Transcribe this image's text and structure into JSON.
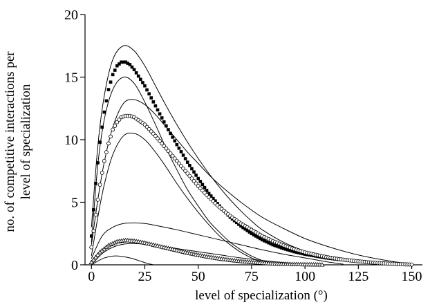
{
  "chart_data": {
    "type": "scatter",
    "title": "",
    "xlabel": "level of specialization (°)",
    "ylabel_line1": "no. of competitive interactions per",
    "ylabel_line2": "level of specialization",
    "xlim": [
      -3,
      155
    ],
    "ylim": [
      0,
      20
    ],
    "xticks": [
      "0",
      "25",
      "50",
      "75",
      "100",
      "125",
      "150"
    ],
    "yticks": [
      "0",
      "5",
      "10",
      "15",
      "20"
    ],
    "grid": false,
    "legend": "none",
    "series": [
      {
        "marker": "filled-square",
        "x": [
          0,
          2,
          4,
          6,
          8,
          10,
          12,
          14,
          16,
          18,
          20,
          25,
          30,
          35,
          40,
          45,
          50,
          55,
          60,
          65,
          70,
          75,
          80,
          85,
          90,
          95,
          100,
          105,
          110,
          115,
          118
        ],
        "y": [
          2.3,
          6.5,
          9.8,
          12.2,
          14.0,
          15.2,
          15.9,
          16.2,
          16.2,
          16.0,
          15.6,
          14.3,
          12.7,
          11.1,
          9.6,
          8.2,
          6.9,
          5.7,
          4.7,
          3.8,
          3.1,
          2.5,
          2.0,
          1.6,
          1.3,
          1.05,
          0.85,
          0.7,
          0.55,
          0.45,
          0.4
        ]
      },
      {
        "marker": "open-circle",
        "x": [
          0,
          2,
          4,
          6,
          8,
          10,
          12,
          14,
          16,
          18,
          20,
          25,
          30,
          35,
          40,
          45,
          50,
          55,
          60,
          65,
          70,
          75,
          80,
          85,
          90,
          95,
          100,
          105,
          110,
          115,
          120,
          125,
          130,
          135,
          140,
          145,
          150
        ],
        "y": [
          1.4,
          4.0,
          6.4,
          8.3,
          9.7,
          10.8,
          11.4,
          11.8,
          11.9,
          11.9,
          11.8,
          11.2,
          10.3,
          9.3,
          8.3,
          7.3,
          6.3,
          5.4,
          4.6,
          3.9,
          3.3,
          2.8,
          2.3,
          1.9,
          1.55,
          1.25,
          1.0,
          0.8,
          0.62,
          0.48,
          0.37,
          0.28,
          0.2,
          0.14,
          0.09,
          0.05,
          0.02
        ]
      },
      {
        "marker": "open-triangle",
        "x": [
          0,
          4,
          8,
          12,
          16,
          20,
          25,
          30,
          35,
          40,
          45,
          50,
          55,
          60,
          65,
          70,
          75,
          80,
          85,
          90,
          95,
          100,
          105,
          108
        ],
        "y": [
          0.2,
          1.0,
          1.55,
          1.85,
          1.95,
          1.9,
          1.75,
          1.55,
          1.35,
          1.15,
          0.95,
          0.78,
          0.62,
          0.48,
          0.37,
          0.28,
          0.2,
          0.14,
          0.09,
          0.06,
          0.04,
          0.02,
          0.01,
          0.0
        ]
      }
    ],
    "envelopes": [
      {
        "x": [
          0,
          3,
          6,
          10,
          15,
          20,
          25,
          30,
          35,
          40,
          45,
          50,
          55,
          60,
          65,
          70,
          75,
          80,
          90,
          100,
          110,
          118
        ],
        "y": [
          3.0,
          9.5,
          13.5,
          16.4,
          17.5,
          17.1,
          15.9,
          14.3,
          12.7,
          11.2,
          9.8,
          8.5,
          7.3,
          6.2,
          5.2,
          4.3,
          3.5,
          2.8,
          1.8,
          1.1,
          0.6,
          0.3
        ]
      },
      {
        "x": [
          0,
          3,
          6,
          10,
          15,
          20,
          25,
          30,
          35,
          40,
          45,
          50,
          55,
          60,
          65,
          70,
          75,
          80,
          85,
          88
        ],
        "y": [
          1.8,
          8.0,
          11.6,
          14.0,
          15.0,
          14.5,
          13.0,
          11.2,
          9.3,
          7.6,
          6.0,
          4.7,
          3.5,
          2.6,
          1.8,
          1.2,
          0.7,
          0.35,
          0.1,
          0.0
        ]
      },
      {
        "x": [
          0,
          3,
          6,
          10,
          15,
          20,
          25,
          30,
          35,
          40,
          45,
          50,
          55,
          60,
          70,
          80,
          90,
          100,
          110,
          120,
          130,
          140,
          150
        ],
        "y": [
          1.6,
          5.2,
          8.2,
          11.0,
          12.9,
          13.2,
          12.8,
          12.0,
          11.0,
          10.0,
          9.0,
          8.1,
          7.2,
          6.4,
          5.0,
          3.8,
          2.9,
          2.1,
          1.5,
          1.0,
          0.6,
          0.3,
          0.05
        ]
      },
      {
        "x": [
          0,
          3,
          6,
          10,
          15,
          20,
          25,
          30,
          35,
          40,
          45,
          50,
          55,
          60,
          65,
          70,
          75,
          80,
          85
        ],
        "y": [
          0.7,
          3.8,
          6.4,
          8.8,
          10.3,
          10.5,
          10.0,
          9.0,
          7.8,
          6.5,
          5.3,
          4.2,
          3.2,
          2.3,
          1.6,
          1.0,
          0.55,
          0.2,
          0.0
        ]
      },
      {
        "x": [
          0,
          5,
          10,
          15,
          20,
          25,
          30,
          40,
          50,
          60,
          70,
          80,
          90,
          100,
          110,
          118
        ],
        "y": [
          0.5,
          2.3,
          3.0,
          3.3,
          3.35,
          3.3,
          3.15,
          2.8,
          2.4,
          2.0,
          1.6,
          1.2,
          0.85,
          0.55,
          0.25,
          0.05
        ]
      },
      {
        "x": [
          0,
          5,
          10,
          15,
          20,
          25,
          30,
          40,
          50,
          60,
          70,
          80,
          90,
          100,
          108
        ],
        "y": [
          0.0,
          0.9,
          1.4,
          1.65,
          1.7,
          1.65,
          1.55,
          1.3,
          1.05,
          0.8,
          0.55,
          0.35,
          0.18,
          0.06,
          0.0
        ]
      },
      {
        "x": [
          0,
          3,
          6,
          10,
          14,
          18,
          22,
          26,
          29
        ],
        "y": [
          0.0,
          0.3,
          0.55,
          0.7,
          0.68,
          0.55,
          0.35,
          0.12,
          0.0
        ]
      }
    ]
  }
}
